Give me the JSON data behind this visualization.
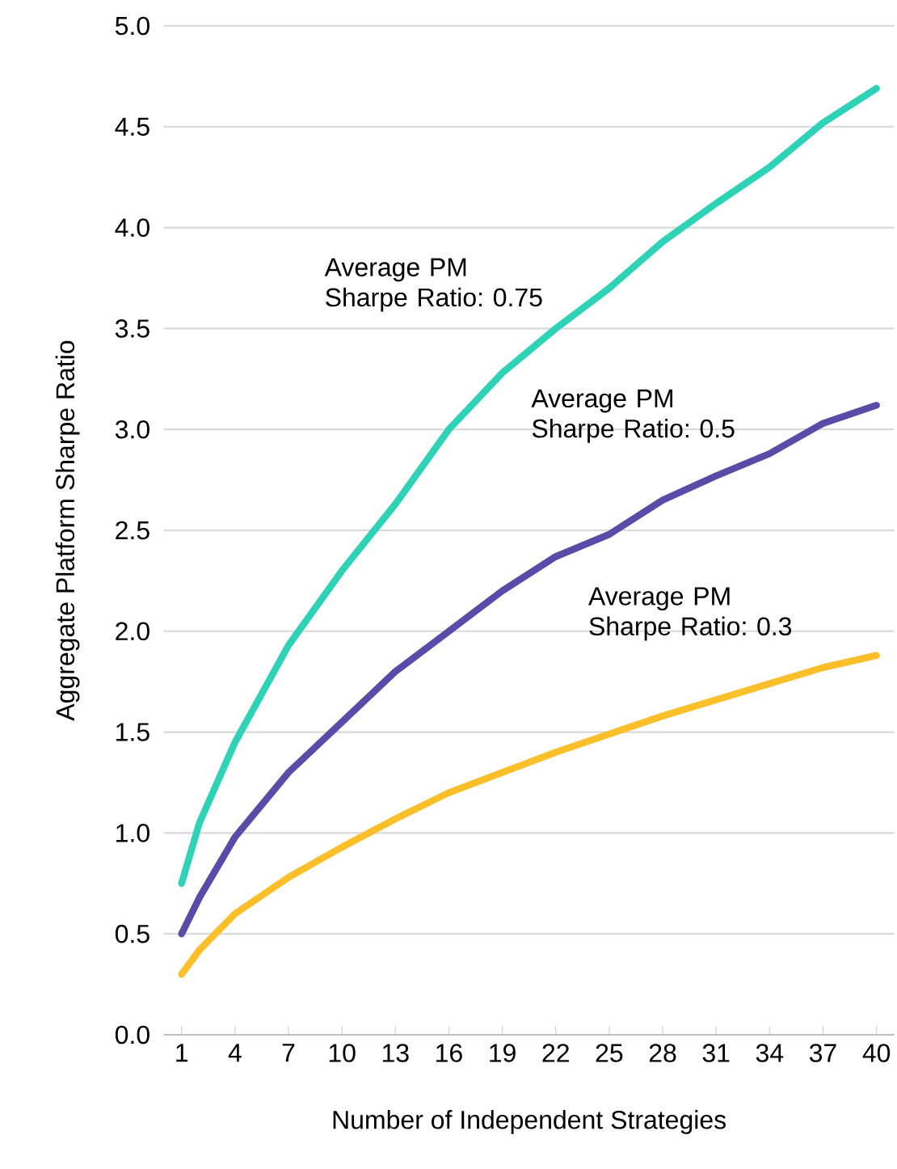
{
  "chart_data": {
    "type": "line",
    "xlabel": "Number of Independent Strategies",
    "ylabel": "Aggregate Platform Sharpe Ratio",
    "xlim": [
      0,
      41
    ],
    "xticks": [
      1,
      4,
      7,
      10,
      13,
      16,
      19,
      22,
      25,
      28,
      31,
      34,
      37,
      40
    ],
    "ylim": [
      0,
      5
    ],
    "yticks": [
      {
        "value": 0,
        "label": "0.0"
      },
      {
        "value": 0.5,
        "label": "0.5"
      },
      {
        "value": 1,
        "label": "1.0"
      },
      {
        "value": 1.5,
        "label": "1.5"
      },
      {
        "value": 2,
        "label": "2.0"
      },
      {
        "value": 2.5,
        "label": "2.5"
      },
      {
        "value": 3,
        "label": "3.0"
      },
      {
        "value": 3.5,
        "label": "3.5"
      },
      {
        "value": 4,
        "label": "4.0"
      },
      {
        "value": 4.5,
        "label": "4.5"
      },
      {
        "value": 5,
        "label": "5.0"
      }
    ],
    "grid": "y",
    "legend": false,
    "marker": "none",
    "line_style": "solid",
    "series": [
      {
        "name": "Average PM Sharpe Ratio: 0.75",
        "color": "#2ed3b7",
        "x": [
          1,
          2,
          4,
          7,
          10,
          13,
          16,
          19,
          22,
          25,
          28,
          31,
          34,
          37,
          40
        ],
        "values": [
          0.75,
          1.05,
          1.45,
          1.93,
          2.3,
          2.63,
          3.0,
          3.28,
          3.5,
          3.7,
          3.93,
          4.12,
          4.3,
          4.52,
          4.69
        ]
      },
      {
        "name": "Average PM Sharpe Ratio: 0.5",
        "color": "#5b4ba8",
        "x": [
          1,
          2,
          4,
          7,
          10,
          13,
          16,
          19,
          22,
          25,
          28,
          31,
          34,
          37,
          40
        ],
        "values": [
          0.5,
          0.68,
          0.98,
          1.3,
          1.55,
          1.8,
          2.0,
          2.2,
          2.37,
          2.48,
          2.65,
          2.77,
          2.88,
          3.03,
          3.12
        ]
      },
      {
        "name": "Average PM Sharpe Ratio: 0.3",
        "color": "#fbbf2a",
        "x": [
          1,
          2,
          4,
          7,
          10,
          13,
          16,
          19,
          22,
          25,
          28,
          31,
          34,
          37,
          40
        ],
        "values": [
          0.3,
          0.42,
          0.6,
          0.78,
          0.93,
          1.07,
          1.2,
          1.3,
          1.4,
          1.49,
          1.58,
          1.66,
          1.74,
          1.82,
          1.88
        ]
      }
    ]
  }
}
